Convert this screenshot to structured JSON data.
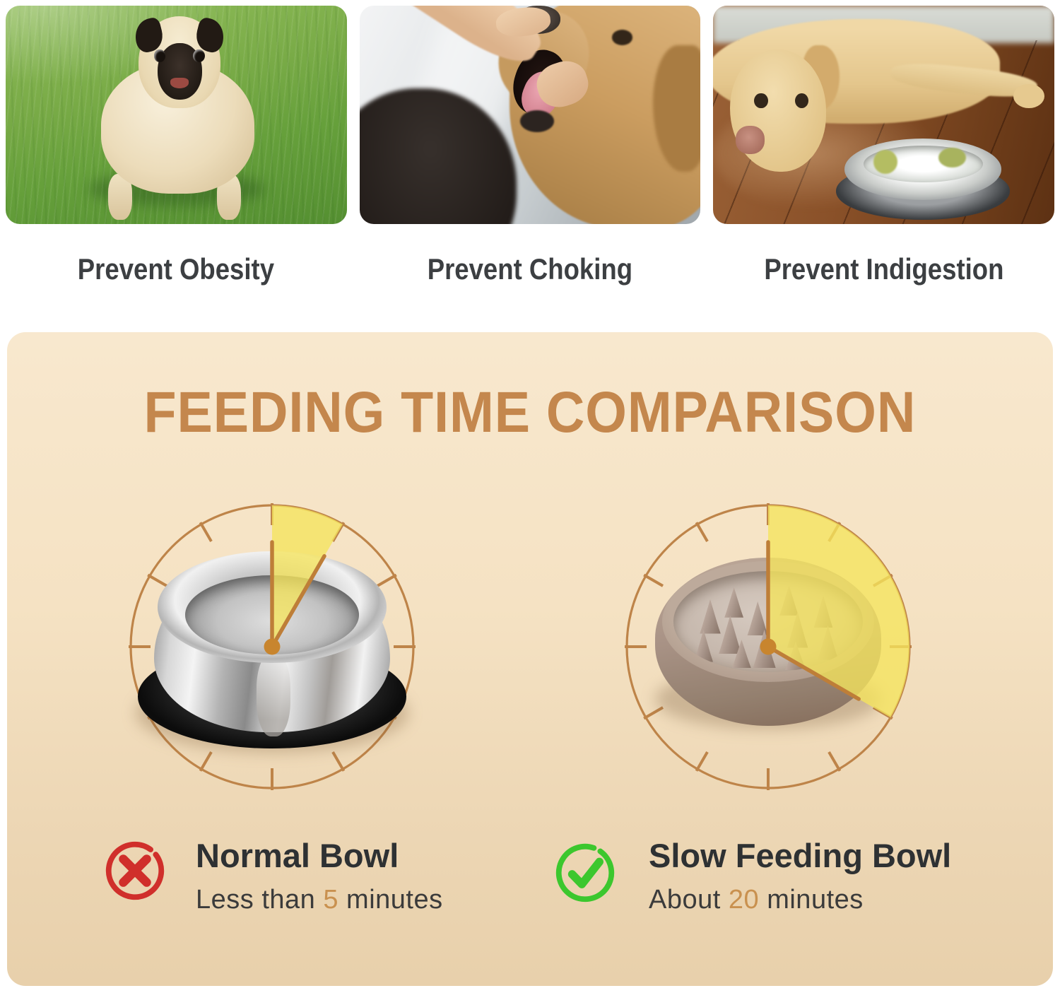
{
  "benefits": {
    "items": [
      {
        "caption": "Prevent Obesity",
        "photo": "obese-pug-on-grass"
      },
      {
        "caption": "Prevent Choking",
        "photo": "owner-checking-dog-mouth"
      },
      {
        "caption": "Prevent Indigestion",
        "photo": "labrador-lying-by-empty-bowl"
      }
    ]
  },
  "comparison": {
    "title": "FEEDING TIME COMPARISON",
    "normal": {
      "name": "Normal Bowl",
      "time_prefix": "Less than ",
      "time_value": "5",
      "time_suffix": " minutes",
      "minutes": 5,
      "verdict": "negative"
    },
    "slow": {
      "name": "Slow Feeding Bowl",
      "time_prefix": "About ",
      "time_value": "20",
      "time_suffix": " minutes",
      "minutes": 20,
      "verdict": "positive"
    }
  },
  "chart_data": {
    "type": "pie",
    "title": "FEEDING TIME COMPARISON",
    "series": [
      {
        "name": "Normal Bowl",
        "minutes": 5,
        "clock_wedge_degrees": 30,
        "label": "Less than 5 minutes"
      },
      {
        "name": "Slow Feeding Bowl",
        "minutes": 20,
        "clock_wedge_degrees": 120,
        "label": "About 20 minutes"
      }
    ],
    "legend_position": "bottom",
    "notes": "each clock face shows minutes as a yellow wedge, 6 degrees per minute"
  },
  "colors": {
    "accent_title": "#C4874D",
    "clock_stroke": "#BE8449",
    "wedge": "#F5E45C",
    "hand": "#BE7E38",
    "center_dot": "#C8852E",
    "negative": "#D02F2B",
    "positive": "#3CC72E",
    "number": "#C9914F",
    "panel_top": "#F8E8CE",
    "panel_bottom": "#E8D0AB"
  }
}
